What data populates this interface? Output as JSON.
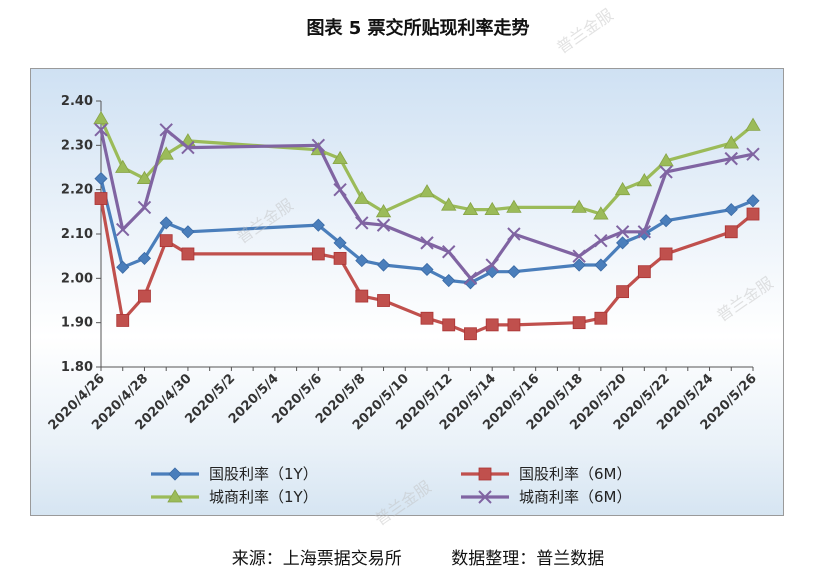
{
  "title": "图表 5  票交所贴现利率走势",
  "source_left": "来源：上海票据交易所",
  "source_right": "数据整理：普兰数据",
  "watermark": "普兰金服",
  "chart_data": {
    "type": "line",
    "ylim": [
      1.8,
      2.4
    ],
    "yticks": [
      "1.80",
      "1.90",
      "2.00",
      "2.10",
      "2.20",
      "2.30",
      "2.40"
    ],
    "xticks": [
      "2020/4/26",
      "2020/4/28",
      "2020/4/30",
      "2020/5/2",
      "2020/5/4",
      "2020/5/6",
      "2020/5/8",
      "2020/5/10",
      "2020/5/12",
      "2020/5/14",
      "2020/5/16",
      "2020/5/18",
      "2020/5/20",
      "2020/5/22",
      "2020/5/24",
      "2020/5/26"
    ],
    "x_start": "2020/4/26",
    "x_end": "2020/5/26",
    "grid": false,
    "legend": "bottom",
    "series": [
      {
        "name": "国股利率（1Y）",
        "color": "#4a7ebb",
        "marker": "diamond",
        "x": [
          "2020/4/26",
          "2020/4/27",
          "2020/4/28",
          "2020/4/29",
          "2020/4/30",
          "2020/5/6",
          "2020/5/7",
          "2020/5/8",
          "2020/5/9",
          "2020/5/11",
          "2020/5/12",
          "2020/5/13",
          "2020/5/14",
          "2020/5/15",
          "2020/5/18",
          "2020/5/19",
          "2020/5/20",
          "2020/5/21",
          "2020/5/22",
          "2020/5/25",
          "2020/5/26"
        ],
        "values": [
          2.225,
          2.025,
          2.045,
          2.125,
          2.105,
          2.12,
          2.08,
          2.04,
          2.03,
          2.02,
          1.995,
          1.99,
          2.015,
          2.015,
          2.03,
          2.03,
          2.08,
          2.1,
          2.13,
          2.155,
          2.175
        ]
      },
      {
        "name": "国股利率（6M）",
        "color": "#c0504d",
        "marker": "square",
        "x": [
          "2020/4/26",
          "2020/4/27",
          "2020/4/28",
          "2020/4/29",
          "2020/4/30",
          "2020/5/6",
          "2020/5/7",
          "2020/5/8",
          "2020/5/9",
          "2020/5/11",
          "2020/5/12",
          "2020/5/13",
          "2020/5/14",
          "2020/5/15",
          "2020/5/18",
          "2020/5/19",
          "2020/5/20",
          "2020/5/21",
          "2020/5/22",
          "2020/5/25",
          "2020/5/26"
        ],
        "values": [
          2.18,
          1.905,
          1.96,
          2.085,
          2.055,
          2.055,
          2.045,
          1.96,
          1.95,
          1.91,
          1.895,
          1.875,
          1.895,
          1.895,
          1.9,
          1.91,
          1.97,
          2.015,
          2.055,
          2.105,
          2.145
        ]
      },
      {
        "name": "城商利率（1Y）",
        "color": "#9bbb59",
        "marker": "triangle",
        "x": [
          "2020/4/26",
          "2020/4/27",
          "2020/4/28",
          "2020/4/29",
          "2020/4/30",
          "2020/5/6",
          "2020/5/7",
          "2020/5/8",
          "2020/5/9",
          "2020/5/11",
          "2020/5/12",
          "2020/5/13",
          "2020/5/14",
          "2020/5/15",
          "2020/5/18",
          "2020/5/19",
          "2020/5/20",
          "2020/5/21",
          "2020/5/22",
          "2020/5/25",
          "2020/5/26"
        ],
        "values": [
          2.36,
          2.25,
          2.225,
          2.28,
          2.31,
          2.29,
          2.27,
          2.18,
          2.15,
          2.195,
          2.165,
          2.155,
          2.155,
          2.16,
          2.16,
          2.145,
          2.2,
          2.22,
          2.265,
          2.305,
          2.345
        ]
      },
      {
        "name": "城商利率（6M）",
        "color": "#8064a2",
        "marker": "x",
        "x": [
          "2020/4/26",
          "2020/4/27",
          "2020/4/28",
          "2020/4/29",
          "2020/4/30",
          "2020/5/6",
          "2020/5/7",
          "2020/5/8",
          "2020/5/9",
          "2020/5/11",
          "2020/5/12",
          "2020/5/13",
          "2020/5/14",
          "2020/5/15",
          "2020/5/18",
          "2020/5/19",
          "2020/5/20",
          "2020/5/21",
          "2020/5/22",
          "2020/5/25",
          "2020/5/26"
        ],
        "values": [
          2.335,
          2.11,
          2.16,
          2.335,
          2.295,
          2.3,
          2.2,
          2.125,
          2.12,
          2.08,
          2.06,
          2.0,
          2.03,
          2.1,
          2.05,
          2.085,
          2.105,
          2.105,
          2.24,
          2.27,
          2.28
        ]
      }
    ]
  }
}
